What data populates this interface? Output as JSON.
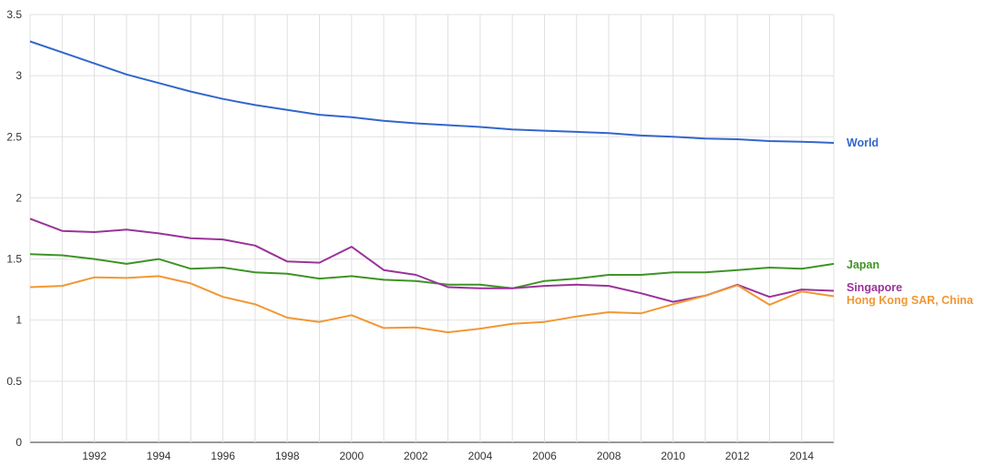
{
  "chart_data": {
    "type": "line",
    "title": "",
    "xlabel": "",
    "ylabel": "",
    "grid": true,
    "legend": "right-of-line-ends",
    "xlim": [
      1990,
      2015
    ],
    "ylim": [
      0,
      3.5
    ],
    "x": [
      1990,
      1991,
      1992,
      1993,
      1994,
      1995,
      1996,
      1997,
      1998,
      1999,
      2000,
      2001,
      2002,
      2003,
      2004,
      2005,
      2006,
      2007,
      2008,
      2009,
      2010,
      2011,
      2012,
      2013,
      2014,
      2015
    ],
    "x_tick_labels": [
      "1992",
      "1994",
      "1996",
      "1998",
      "2000",
      "2002",
      "2004",
      "2006",
      "2008",
      "2010",
      "2012",
      "2014"
    ],
    "y_tick_labels": [
      "0",
      "0.5",
      "1",
      "1.5",
      "2",
      "2.5",
      "3",
      "3.5"
    ],
    "series": [
      {
        "name": "World",
        "color": "#3366cc",
        "values": [
          3.28,
          3.19,
          3.1,
          3.01,
          2.94,
          2.87,
          2.81,
          2.76,
          2.72,
          2.68,
          2.66,
          2.63,
          2.61,
          2.595,
          2.58,
          2.56,
          2.55,
          2.54,
          2.53,
          2.51,
          2.5,
          2.485,
          2.48,
          2.465,
          2.46,
          2.45
        ]
      },
      {
        "name": "Japan",
        "color": "#3f9326",
        "values": [
          1.54,
          1.53,
          1.5,
          1.46,
          1.5,
          1.42,
          1.43,
          1.39,
          1.38,
          1.34,
          1.36,
          1.33,
          1.32,
          1.29,
          1.29,
          1.26,
          1.32,
          1.34,
          1.37,
          1.37,
          1.39,
          1.39,
          1.41,
          1.43,
          1.42,
          1.46
        ]
      },
      {
        "name": "Singapore",
        "color": "#993399",
        "values": [
          1.83,
          1.73,
          1.72,
          1.74,
          1.71,
          1.67,
          1.66,
          1.61,
          1.48,
          1.47,
          1.6,
          1.41,
          1.37,
          1.27,
          1.26,
          1.26,
          1.28,
          1.29,
          1.28,
          1.22,
          1.15,
          1.2,
          1.29,
          1.19,
          1.25,
          1.24
        ]
      },
      {
        "name": "Hong Kong SAR, China",
        "color": "#f29733",
        "values": [
          1.27,
          1.28,
          1.35,
          1.345,
          1.36,
          1.3,
          1.19,
          1.13,
          1.02,
          0.985,
          1.04,
          0.935,
          0.94,
          0.9,
          0.93,
          0.97,
          0.985,
          1.03,
          1.065,
          1.055,
          1.13,
          1.2,
          1.285,
          1.125,
          1.235,
          1.195
        ]
      }
    ]
  }
}
